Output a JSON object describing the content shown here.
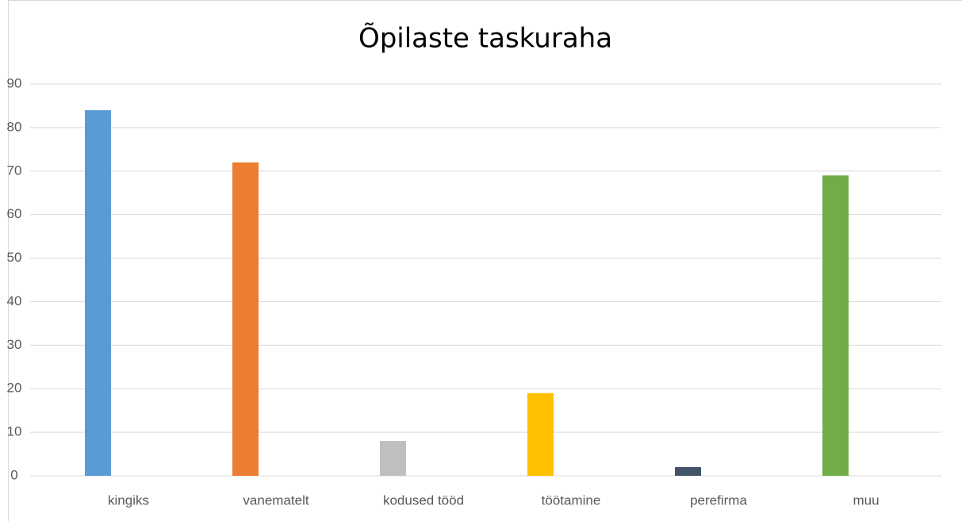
{
  "chart_data": {
    "type": "bar",
    "title": "Õpilaste taskuraha",
    "categories": [
      "kingiks",
      "vanematelt",
      "kodused tööd",
      "töötamine",
      "perefirma",
      "muu"
    ],
    "values": [
      84,
      72,
      8,
      19,
      2,
      69
    ],
    "colors": [
      "#5b9bd5",
      "#ed7d31",
      "#bfbfbf",
      "#ffc000",
      "#44546a",
      "#70ad47"
    ],
    "ylim": [
      0,
      90
    ],
    "yticks": [
      0,
      10,
      20,
      30,
      40,
      50,
      60,
      70,
      80,
      90
    ],
    "grid": true
  }
}
